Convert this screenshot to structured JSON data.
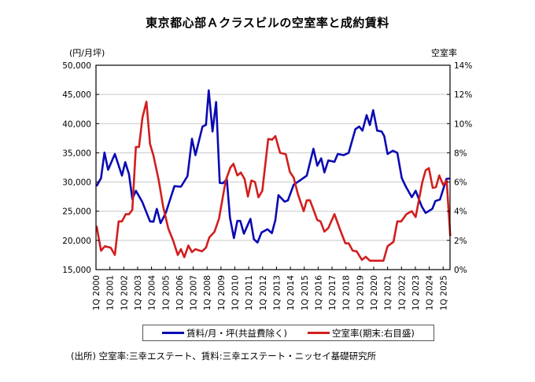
{
  "chart_data": {
    "type": "line",
    "title": "東京都心部Ａクラスビルの空室率と成約賃料",
    "ylabel_left": "(円/月坪)",
    "ylabel_right": "空室率",
    "ylim_left": [
      15000,
      50000
    ],
    "ylim_right": [
      0,
      14
    ],
    "yticks_left": [
      "15,000",
      "20,000",
      "25,000",
      "30,000",
      "35,000",
      "40,000",
      "45,000",
      "50,000"
    ],
    "yticks_right": [
      "0%",
      "2%",
      "4%",
      "6%",
      "8%",
      "10%",
      "12%",
      "14%"
    ],
    "xlim": [
      2000,
      2025.55
    ],
    "xticks": [
      "1Q 2000",
      "1Q 2001",
      "1Q 2002",
      "1Q 2003",
      "1Q 2004",
      "1Q 2005",
      "1Q 2006",
      "1Q 2007",
      "1Q 2008",
      "1Q 2009",
      "1Q 2010",
      "1Q 2011",
      "1Q 2012",
      "1Q 2013",
      "1Q 2014",
      "1Q 2015",
      "1Q 2016",
      "1Q 2017",
      "1Q 2018",
      "1Q 2019",
      "1Q 2020",
      "1Q 2021",
      "1Q 2022",
      "1Q 2023",
      "1Q 2024",
      "1Q 2025"
    ],
    "grid": true,
    "legend_placement": "bottom",
    "series": [
      {
        "name": "賃料/月・坪(共益費除く)",
        "axis": "left",
        "color": "#0a0ab4",
        "points": [
          [
            2000.04,
            29300
          ],
          [
            2000.36,
            30650
          ],
          [
            2000.61,
            35050
          ],
          [
            2000.87,
            32100
          ],
          [
            2001.36,
            34800
          ],
          [
            2001.87,
            31100
          ],
          [
            2002.11,
            33400
          ],
          [
            2002.38,
            31300
          ],
          [
            2002.62,
            27100
          ],
          [
            2002.87,
            28500
          ],
          [
            2003.33,
            26600
          ],
          [
            2003.89,
            23250
          ],
          [
            2004.14,
            23200
          ],
          [
            2004.38,
            25400
          ],
          [
            2004.65,
            22950
          ],
          [
            2005.03,
            24750
          ],
          [
            2005.65,
            29300
          ],
          [
            2006.12,
            29200
          ],
          [
            2006.59,
            31000
          ],
          [
            2006.91,
            37400
          ],
          [
            2007.16,
            34600
          ],
          [
            2007.67,
            39500
          ],
          [
            2007.92,
            39800
          ],
          [
            2008.12,
            45700
          ],
          [
            2008.39,
            38650
          ],
          [
            2008.65,
            43700
          ],
          [
            2008.91,
            29850
          ],
          [
            2009.14,
            29800
          ],
          [
            2009.42,
            30450
          ],
          [
            2009.65,
            23900
          ],
          [
            2009.93,
            20400
          ],
          [
            2010.18,
            23350
          ],
          [
            2010.39,
            23350
          ],
          [
            2010.65,
            21150
          ],
          [
            2011.12,
            23700
          ],
          [
            2011.37,
            20200
          ],
          [
            2011.63,
            19650
          ],
          [
            2011.92,
            21350
          ],
          [
            2012.35,
            21900
          ],
          [
            2012.67,
            21250
          ],
          [
            2012.92,
            23500
          ],
          [
            2013.14,
            27750
          ],
          [
            2013.58,
            26650
          ],
          [
            2013.82,
            26850
          ],
          [
            2014.24,
            29550
          ],
          [
            2014.71,
            30300
          ],
          [
            2015.18,
            31100
          ],
          [
            2015.66,
            35700
          ],
          [
            2015.94,
            32800
          ],
          [
            2016.22,
            34050
          ],
          [
            2016.45,
            31650
          ],
          [
            2016.73,
            33700
          ],
          [
            2017.17,
            33450
          ],
          [
            2017.41,
            34800
          ],
          [
            2017.83,
            34600
          ],
          [
            2018.2,
            35000
          ],
          [
            2018.68,
            39050
          ],
          [
            2018.96,
            39500
          ],
          [
            2019.19,
            38800
          ],
          [
            2019.49,
            41450
          ],
          [
            2019.72,
            39750
          ],
          [
            2019.96,
            42300
          ],
          [
            2020.25,
            38800
          ],
          [
            2020.57,
            38650
          ],
          [
            2020.76,
            37850
          ],
          [
            2021.0,
            34800
          ],
          [
            2021.38,
            35350
          ],
          [
            2021.7,
            35000
          ],
          [
            2022.02,
            30650
          ],
          [
            2022.32,
            29200
          ],
          [
            2022.74,
            27400
          ],
          [
            2023.02,
            28500
          ],
          [
            2023.46,
            25800
          ],
          [
            2023.74,
            24700
          ],
          [
            2024.22,
            25400
          ],
          [
            2024.44,
            26750
          ],
          [
            2024.77,
            27000
          ],
          [
            2025.24,
            30550
          ],
          [
            2025.52,
            30600
          ]
        ]
      },
      {
        "name": "空室率(期末:右目盛)",
        "axis": "right",
        "color": "#d21e1e",
        "points": [
          [
            2000.04,
            3.0
          ],
          [
            2000.36,
            1.3
          ],
          [
            2000.64,
            1.6
          ],
          [
            2001.06,
            1.5
          ],
          [
            2001.36,
            1.0
          ],
          [
            2001.63,
            3.3
          ],
          [
            2001.87,
            3.3
          ],
          [
            2002.15,
            3.8
          ],
          [
            2002.38,
            3.8
          ],
          [
            2002.62,
            4.1
          ],
          [
            2002.87,
            8.4
          ],
          [
            2003.1,
            8.4
          ],
          [
            2003.34,
            10.4
          ],
          [
            2003.63,
            11.5
          ],
          [
            2003.89,
            8.6
          ],
          [
            2004.14,
            7.8
          ],
          [
            2004.52,
            6.1
          ],
          [
            2004.84,
            4.3
          ],
          [
            2005.21,
            2.8
          ],
          [
            2005.55,
            2.0
          ],
          [
            2005.89,
            1.0
          ],
          [
            2006.12,
            1.4
          ],
          [
            2006.36,
            0.85
          ],
          [
            2006.65,
            1.65
          ],
          [
            2006.91,
            1.2
          ],
          [
            2007.16,
            1.4
          ],
          [
            2007.63,
            1.25
          ],
          [
            2007.92,
            1.5
          ],
          [
            2008.16,
            2.2
          ],
          [
            2008.54,
            2.6
          ],
          [
            2008.86,
            3.5
          ],
          [
            2009.34,
            6.1
          ],
          [
            2009.68,
            7.0
          ],
          [
            2009.9,
            7.25
          ],
          [
            2010.18,
            6.45
          ],
          [
            2010.43,
            6.65
          ],
          [
            2010.7,
            6.2
          ],
          [
            2010.94,
            5.0
          ],
          [
            2011.19,
            6.1
          ],
          [
            2011.45,
            6.0
          ],
          [
            2011.7,
            4.95
          ],
          [
            2011.98,
            5.4
          ],
          [
            2012.4,
            8.95
          ],
          [
            2012.68,
            8.9
          ],
          [
            2012.92,
            9.15
          ],
          [
            2013.26,
            8.0
          ],
          [
            2013.67,
            7.9
          ],
          [
            2013.96,
            6.7
          ],
          [
            2014.24,
            6.3
          ],
          [
            2014.53,
            5.2
          ],
          [
            2014.96,
            4.0
          ],
          [
            2015.18,
            4.75
          ],
          [
            2015.41,
            4.75
          ],
          [
            2015.94,
            3.4
          ],
          [
            2016.17,
            3.3
          ],
          [
            2016.45,
            2.6
          ],
          [
            2016.73,
            2.85
          ],
          [
            2017.17,
            3.8
          ],
          [
            2017.55,
            2.8
          ],
          [
            2017.96,
            1.8
          ],
          [
            2018.2,
            1.8
          ],
          [
            2018.49,
            1.3
          ],
          [
            2018.77,
            1.25
          ],
          [
            2019.15,
            0.67
          ],
          [
            2019.43,
            0.88
          ],
          [
            2019.72,
            0.61
          ],
          [
            2020.7,
            0.61
          ],
          [
            2021.0,
            1.6
          ],
          [
            2021.42,
            1.9
          ],
          [
            2021.7,
            3.3
          ],
          [
            2021.98,
            3.3
          ],
          [
            2022.36,
            3.8
          ],
          [
            2022.74,
            4.0
          ],
          [
            2023.02,
            3.6
          ],
          [
            2023.5,
            6.0
          ],
          [
            2023.74,
            6.8
          ],
          [
            2023.97,
            6.95
          ],
          [
            2024.25,
            5.6
          ],
          [
            2024.48,
            5.65
          ],
          [
            2024.72,
            6.45
          ],
          [
            2025.0,
            5.8
          ],
          [
            2025.25,
            6.1
          ],
          [
            2025.51,
            2.3
          ]
        ]
      }
    ],
    "source": "(出所) 空室率:三幸エステート、賃料:三幸エステート・ニッセイ基礎研究所"
  }
}
